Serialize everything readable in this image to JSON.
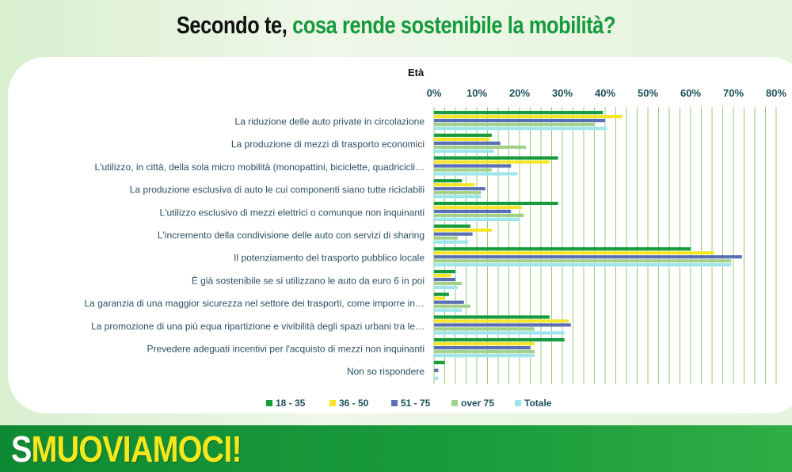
{
  "header": {
    "title_part1": "Secondo te,",
    "title_part2": "cosa rende sostenibile la mobilità?"
  },
  "brand": {
    "first_letter": "S",
    "rest": "MUOVIAMOCI!"
  },
  "colors": {
    "series": [
      "#159a3c",
      "#f5e62a",
      "#5b6fb5",
      "#a3d18c",
      "#9ee5ec"
    ],
    "grid": "#8dc86e",
    "title_green": "#159a3c",
    "banner_green": "#1a9c3c",
    "brand_yellow": "#f3e81d"
  },
  "chart_data": {
    "type": "bar",
    "orientation": "horizontal",
    "title": "Età",
    "xlim": [
      0,
      80
    ],
    "ticks": [
      "0%",
      "10%",
      "20%",
      "30%",
      "40%",
      "50%",
      "60%",
      "70%",
      "80%"
    ],
    "grid": true,
    "legend_position": "bottom",
    "categories": [
      "La riduzione delle auto private in circolazione",
      "La produzione di mezzi di trasporto economici",
      "L'utilizzo, in città, della sola micro mobilità (monopattini, biciclette, quadricicli…",
      "La produzione esclusiva di auto le cui componenti siano tutte riciclabili",
      "L'utilizzo esclusivo di mezzi elettrici o comunque non inquinanti",
      "L'incremento della condivisione delle auto con servizi di sharing",
      "Il potenziamento del trasporto pubblico locale",
      "È già sostenibile se si utilizzano le auto da euro 6 in poi",
      "La garanzia di una maggior sicurezza nel settore dei trasporti, come imporre in…",
      "La promozione di una più equa ripartizione e vivibilità degli spazi urbani tra le…",
      "Prevedere adeguati incentivi per l'acquisto di mezzi non inquinanti",
      "Non so rispondere"
    ],
    "series": [
      {
        "name": "18 - 35",
        "values": [
          39.5,
          13.5,
          29,
          6.5,
          29,
          8.5,
          60,
          5,
          3.5,
          27,
          30.5,
          2.5
        ]
      },
      {
        "name": "36 - 50",
        "values": [
          44,
          13,
          27,
          9.5,
          20.5,
          13.5,
          65.5,
          4,
          2.5,
          31.5,
          23.5,
          0
        ]
      },
      {
        "name": "51 - 75",
        "values": [
          40,
          15.5,
          18,
          12,
          18,
          9,
          72,
          5,
          7,
          32,
          22.5,
          1
        ]
      },
      {
        "name": "over 75",
        "values": [
          37.5,
          21.5,
          13.5,
          11,
          21,
          5.5,
          69.5,
          6.5,
          8.5,
          23.5,
          23.5,
          0
        ]
      },
      {
        "name": "Totale",
        "values": [
          40.5,
          14,
          19.5,
          11,
          20,
          8,
          69.5,
          5.5,
          6.5,
          30.5,
          23.5,
          1
        ]
      }
    ]
  }
}
